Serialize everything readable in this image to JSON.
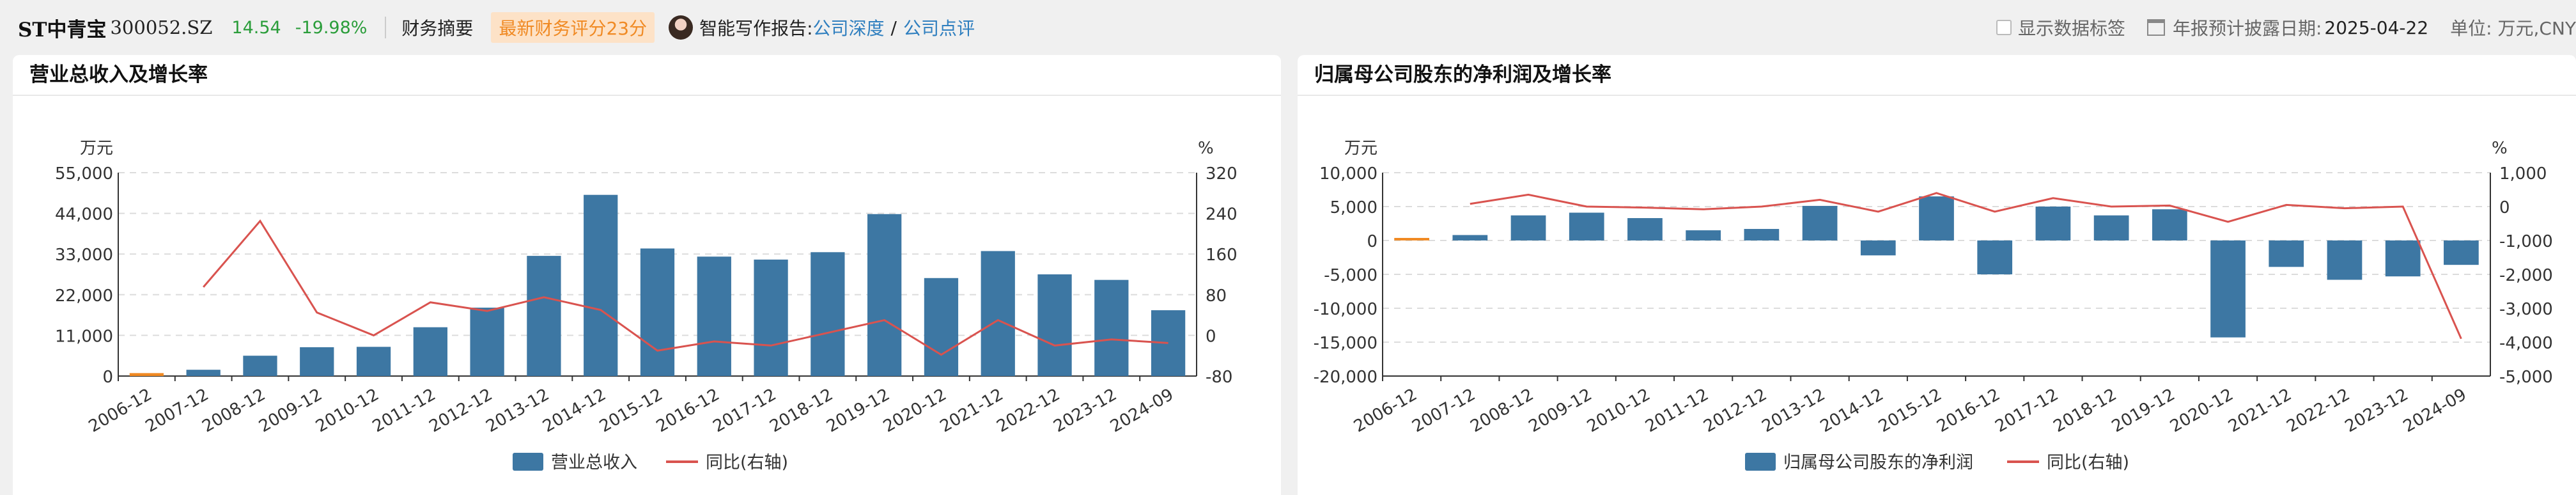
{
  "header": {
    "stock_name": "ST中青宝",
    "stock_code": "300052.SZ",
    "price": "14.54",
    "change": "-19.98%",
    "tab_label": "财务摘要",
    "score_badge": "最新财务评分23分",
    "ai_report_label": "智能写作报告:",
    "link_depth": "公司深度",
    "link_sep": "/",
    "link_review": "公司点评",
    "show_labels": "显示数据标签",
    "disclosure_label": "年报预计披露日期:",
    "disclosure_date": "2025-04-22",
    "unit_label": "单位: 万元,CNY"
  },
  "colors": {
    "bar": "#3d77a3",
    "first_bar": "#f08a24",
    "line": "#d9534f",
    "price_green": "#2a9d3a",
    "link_blue": "#2f7fbf"
  },
  "chart_data": [
    {
      "type": "bar",
      "title": "营业总收入及增长率",
      "left_unit": "万元",
      "right_unit": "%",
      "categories": [
        "2006-12",
        "2007-12",
        "2008-12",
        "2009-12",
        "2010-12",
        "2011-12",
        "2012-12",
        "2013-12",
        "2014-12",
        "2015-12",
        "2016-12",
        "2017-12",
        "2018-12",
        "2019-12",
        "2020-12",
        "2021-12",
        "2022-12",
        "2023-12",
        "2024-09"
      ],
      "left_axis": {
        "min": 0,
        "max": 55000,
        "ticks": [
          0,
          11000,
          22000,
          33000,
          44000,
          55000
        ],
        "tick_labels": [
          "0",
          "11,000",
          "22,000",
          "33,000",
          "44,000",
          "55,000"
        ]
      },
      "right_axis": {
        "min": -80,
        "max": 320,
        "ticks": [
          -80,
          0,
          80,
          160,
          240,
          320
        ],
        "tick_labels": [
          "-80",
          "0",
          "80",
          "160",
          "240",
          "320"
        ]
      },
      "series": [
        {
          "name": "营业总收入",
          "kind": "bar",
          "values": [
            800,
            1700,
            5500,
            7800,
            7900,
            13200,
            18500,
            32500,
            49000,
            34500,
            32300,
            31500,
            33500,
            43800,
            26500,
            33800,
            27500,
            26000,
            17800
          ]
        },
        {
          "name": "同比(右轴)",
          "kind": "line",
          "axis": "right",
          "values": [
            null,
            95,
            225,
            45,
            0,
            65,
            48,
            75,
            50,
            -30,
            -12,
            -20,
            5,
            30,
            -38,
            30,
            -20,
            -8,
            -15
          ]
        }
      ]
    },
    {
      "type": "bar",
      "title": "归属母公司股东的净利润及增长率",
      "left_unit": "万元",
      "right_unit": "%",
      "categories": [
        "2006-12",
        "2007-12",
        "2008-12",
        "2009-12",
        "2010-12",
        "2011-12",
        "2012-12",
        "2013-12",
        "2014-12",
        "2015-12",
        "2016-12",
        "2017-12",
        "2018-12",
        "2019-12",
        "2020-12",
        "2021-12",
        "2022-12",
        "2023-12",
        "2024-09"
      ],
      "left_axis": {
        "min": -20000,
        "max": 10000,
        "ticks": [
          -20000,
          -15000,
          -10000,
          -5000,
          0,
          5000,
          10000
        ],
        "tick_labels": [
          "-20,000",
          "-15,000",
          "-10,000",
          "-5,000",
          "0",
          "5,000",
          "10,000"
        ]
      },
      "right_axis": {
        "min": -5000,
        "max": 1000,
        "ticks": [
          -5000,
          -4000,
          -3000,
          -2000,
          -1000,
          0,
          1000
        ],
        "tick_labels": [
          "-5,000",
          "-4,000",
          "-3,000",
          "-2,000",
          "-1,000",
          "0",
          "1,000"
        ]
      },
      "series": [
        {
          "name": "归属母公司股东的净利润",
          "kind": "bar",
          "values": [
            300,
            800,
            3700,
            4100,
            3300,
            1500,
            1700,
            5100,
            -2200,
            6500,
            -5000,
            5000,
            3700,
            4600,
            -14300,
            -3900,
            -5800,
            -5300,
            -3600
          ]
        },
        {
          "name": "同比(右轴)",
          "kind": "line",
          "axis": "right",
          "values": [
            null,
            80,
            350,
            0,
            -30,
            -80,
            0,
            200,
            -150,
            400,
            -150,
            250,
            0,
            30,
            -450,
            50,
            -50,
            0,
            -3900
          ]
        }
      ]
    }
  ]
}
